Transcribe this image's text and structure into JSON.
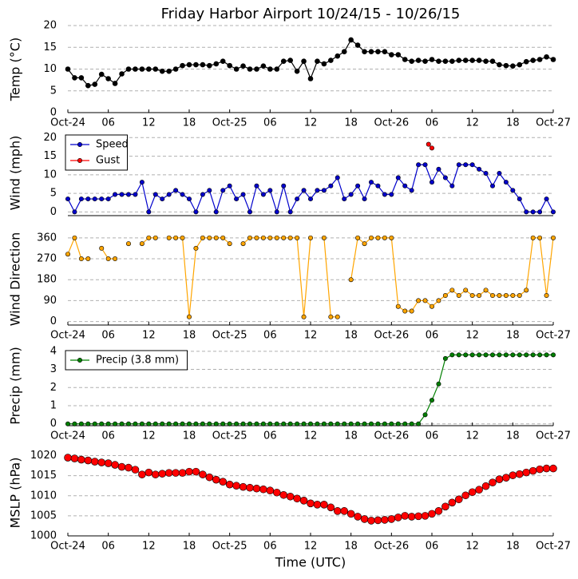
{
  "chart_data": [
    {
      "type": "line",
      "title": "Friday Harbor Airport 10/24/15 - 10/26/15",
      "ylabel": "Temp (°C)",
      "xlim": [
        0,
        72
      ],
      "ylim": [
        0,
        20
      ],
      "yticks": [
        0,
        5,
        10,
        15,
        20
      ],
      "grid": true,
      "xticks": [
        {
          "value": 0,
          "label": "Oct-24"
        },
        {
          "value": 6,
          "label": "06"
        },
        {
          "value": 12,
          "label": "12"
        },
        {
          "value": 18,
          "label": "18"
        },
        {
          "value": 24,
          "label": "Oct-25"
        },
        {
          "value": 30,
          "label": "06"
        },
        {
          "value": 36,
          "label": "12"
        },
        {
          "value": 42,
          "label": "18"
        },
        {
          "value": 48,
          "label": "Oct-26"
        },
        {
          "value": 54,
          "label": "06"
        },
        {
          "value": 60,
          "label": "12"
        },
        {
          "value": 66,
          "label": "18"
        },
        {
          "value": 72,
          "label": "Oct-27"
        }
      ],
      "x": [
        0,
        1,
        2,
        3,
        4,
        5,
        6,
        7,
        8,
        9,
        10,
        11,
        12,
        13,
        14,
        15,
        16,
        17,
        18,
        19,
        20,
        21,
        22,
        23,
        24,
        25,
        26,
        27,
        28,
        29,
        30,
        31,
        32,
        33,
        34,
        35,
        36,
        37,
        38,
        39,
        40,
        41,
        42,
        43,
        44,
        45,
        46,
        47,
        48,
        49,
        50,
        51,
        52,
        53,
        54,
        55,
        56,
        57,
        58,
        59,
        60,
        61,
        62,
        63,
        64,
        65,
        66,
        67,
        68,
        69,
        70,
        71,
        72
      ],
      "series": [
        {
          "name": "Temp",
          "color": "#000000",
          "values": [
            10,
            8,
            8,
            6.2,
            6.5,
            8.8,
            7.8,
            6.7,
            8.9,
            10,
            10,
            10,
            10,
            10,
            9.5,
            9.5,
            10,
            10.8,
            11,
            11,
            11,
            10.8,
            11.2,
            11.8,
            10.8,
            10,
            10.7,
            10,
            10,
            10.7,
            10,
            10,
            11.8,
            12,
            9.5,
            11.8,
            7.8,
            11.8,
            11.2,
            12,
            13,
            14,
            16.7,
            15.5,
            14,
            14,
            14,
            14,
            13.3,
            13.3,
            12.2,
            11.8,
            12,
            11.8,
            12.2,
            11.8,
            11.8,
            11.8,
            12,
            12,
            12,
            12,
            11.8,
            11.8,
            11,
            10.8,
            10.7,
            11,
            11.7,
            12,
            12.2,
            12.8,
            12.2
          ]
        }
      ]
    },
    {
      "type": "line",
      "ylabel": "Wind (mph)",
      "legend": "upper left",
      "xlim": [
        0,
        72
      ],
      "ylim": [
        -1,
        22
      ],
      "yticks": [
        0,
        5,
        10,
        15,
        20
      ],
      "grid": true,
      "x": [
        0,
        1,
        2,
        3,
        4,
        5,
        6,
        7,
        8,
        9,
        10,
        11,
        12,
        13,
        14,
        15,
        16,
        17,
        18,
        19,
        20,
        21,
        22,
        23,
        24,
        25,
        26,
        27,
        28,
        29,
        30,
        31,
        32,
        33,
        34,
        35,
        36,
        37,
        38,
        39,
        40,
        41,
        42,
        43,
        44,
        45,
        46,
        47,
        48,
        49,
        50,
        51,
        52,
        53,
        54,
        55,
        56,
        57,
        58,
        59,
        60,
        61,
        62,
        63,
        64,
        65,
        66,
        67,
        68,
        69,
        70,
        71,
        72
      ],
      "series": [
        {
          "name": "Speed",
          "color": "#0000cc",
          "values": [
            3.5,
            0,
            3.5,
            3.5,
            3.5,
            3.5,
            3.5,
            4.7,
            4.7,
            4.7,
            4.7,
            8,
            0,
            4.7,
            3.5,
            4.7,
            5.8,
            4.7,
            3.5,
            0,
            4.7,
            5.8,
            0,
            5.8,
            7,
            3.5,
            4.7,
            0,
            7,
            4.7,
            5.8,
            0,
            7,
            0,
            3.5,
            5.8,
            3.5,
            5.8,
            5.8,
            7,
            9.2,
            3.5,
            4.7,
            7,
            3.5,
            8,
            7,
            4.7,
            4.7,
            9.2,
            7,
            5.8,
            12.7,
            12.7,
            8,
            11.5,
            9.2,
            7,
            12.7,
            12.7,
            12.7,
            11.5,
            10.4,
            7,
            10.4,
            8,
            5.8,
            3.5,
            0,
            0,
            0,
            3.5,
            0
          ]
        },
        {
          "name": "Gust",
          "color": "#ff0000",
          "x": [
            53.5,
            54
          ],
          "values": [
            18.2,
            17.2
          ]
        }
      ]
    },
    {
      "type": "line",
      "ylabel": "Wind Direction",
      "xlim": [
        0,
        72
      ],
      "ylim": [
        -15,
        380
      ],
      "yticks": [
        0,
        90,
        180,
        270,
        360
      ],
      "grid": true,
      "xticks": [
        {
          "value": 0,
          "label": "Oct-24"
        },
        {
          "value": 6,
          "label": "06"
        },
        {
          "value": 12,
          "label": "12"
        },
        {
          "value": 18,
          "label": "18"
        },
        {
          "value": 24,
          "label": "Oct-25"
        },
        {
          "value": 30,
          "label": "06"
        },
        {
          "value": 36,
          "label": "12"
        },
        {
          "value": 42,
          "label": "18"
        },
        {
          "value": 48,
          "label": "Oct-26"
        },
        {
          "value": 54,
          "label": "06"
        },
        {
          "value": 60,
          "label": "12"
        },
        {
          "value": 66,
          "label": "18"
        },
        {
          "value": 72,
          "label": "Oct-27"
        }
      ],
      "x": [
        0,
        1,
        2,
        3,
        4,
        5,
        6,
        7,
        8,
        9,
        10,
        11,
        12,
        13,
        14,
        15,
        16,
        17,
        18,
        19,
        20,
        21,
        22,
        23,
        24,
        25,
        26,
        27,
        28,
        29,
        30,
        31,
        32,
        33,
        34,
        35,
        36,
        37,
        38,
        39,
        40,
        41,
        42,
        43,
        44,
        45,
        46,
        47,
        48,
        49,
        50,
        51,
        52,
        53,
        54,
        55,
        56,
        57,
        58,
        59,
        60,
        61,
        62,
        63,
        64,
        65,
        66,
        67,
        68,
        69,
        70,
        71,
        72
      ],
      "series": [
        {
          "name": "Direction",
          "color": "#ffa500",
          "values": [
            290,
            360,
            270,
            270,
            null,
            315,
            270,
            270,
            null,
            335,
            null,
            335,
            360,
            360,
            null,
            360,
            360,
            360,
            20,
            315,
            360,
            360,
            360,
            360,
            335,
            null,
            335,
            360,
            360,
            360,
            360,
            360,
            360,
            360,
            360,
            20,
            360,
            null,
            360,
            20,
            20,
            null,
            180,
            360,
            335,
            360,
            360,
            360,
            360,
            65,
            45,
            45,
            90,
            90,
            65,
            90,
            112,
            135,
            112,
            135,
            112,
            112,
            135,
            112,
            112,
            112,
            112,
            112,
            135,
            360,
            360,
            112,
            360
          ]
        }
      ]
    },
    {
      "type": "line",
      "ylabel": "Precip (mm)",
      "legend": "upper left",
      "xlim": [
        0,
        72
      ],
      "ylim": [
        -0.1,
        4.3
      ],
      "yticks": [
        0,
        1,
        2,
        3,
        4
      ],
      "grid": true,
      "xticks": [
        {
          "value": 0,
          "label": "Oct-24"
        },
        {
          "value": 6,
          "label": "06"
        },
        {
          "value": 12,
          "label": "12"
        },
        {
          "value": 18,
          "label": "18"
        },
        {
          "value": 24,
          "label": "Oct-25"
        },
        {
          "value": 30,
          "label": "06"
        },
        {
          "value": 36,
          "label": "12"
        },
        {
          "value": 42,
          "label": "18"
        },
        {
          "value": 48,
          "label": "Oct-26"
        },
        {
          "value": 54,
          "label": "06"
        },
        {
          "value": 60,
          "label": "12"
        },
        {
          "value": 66,
          "label": "18"
        },
        {
          "value": 72,
          "label": "Oct-27"
        }
      ],
      "x": [
        0,
        1,
        2,
        3,
        4,
        5,
        6,
        7,
        8,
        9,
        10,
        11,
        12,
        13,
        14,
        15,
        16,
        17,
        18,
        19,
        20,
        21,
        22,
        23,
        24,
        25,
        26,
        27,
        28,
        29,
        30,
        31,
        32,
        33,
        34,
        35,
        36,
        37,
        38,
        39,
        40,
        41,
        42,
        43,
        44,
        45,
        46,
        47,
        48,
        49,
        50,
        51,
        52,
        53,
        54,
        55,
        56,
        57,
        58,
        59,
        60,
        61,
        62,
        63,
        64,
        65,
        66,
        67,
        68,
        69,
        70,
        71,
        72
      ],
      "series": [
        {
          "name": "Precip (3.8 mm)",
          "color": "#007f00",
          "values": [
            0,
            0,
            0,
            0,
            0,
            0,
            0,
            0,
            0,
            0,
            0,
            0,
            0,
            0,
            0,
            0,
            0,
            0,
            0,
            0,
            0,
            0,
            0,
            0,
            0,
            0,
            0,
            0,
            0,
            0,
            0,
            0,
            0,
            0,
            0,
            0,
            0,
            0,
            0,
            0,
            0,
            0,
            0,
            0,
            0,
            0,
            0,
            0,
            0,
            0,
            0,
            0,
            0,
            0.5,
            1.3,
            2.2,
            3.6,
            3.8,
            3.8,
            3.8,
            3.8,
            3.8,
            3.8,
            3.8,
            3.8,
            3.8,
            3.8,
            3.8,
            3.8,
            3.8,
            3.8,
            3.8,
            3.8
          ]
        }
      ]
    },
    {
      "type": "line",
      "ylabel": "MSLP (hPa)",
      "xlabel": "Time (UTC)",
      "xlim": [
        0,
        72
      ],
      "ylim": [
        1000,
        1021.5
      ],
      "yticks": [
        1000,
        1005,
        1010,
        1015,
        1020
      ],
      "grid": true,
      "xticks": [
        {
          "value": 0,
          "label": "Oct-24"
        },
        {
          "value": 6,
          "label": "06"
        },
        {
          "value": 12,
          "label": "12"
        },
        {
          "value": 18,
          "label": "18"
        },
        {
          "value": 24,
          "label": "Oct-25"
        },
        {
          "value": 30,
          "label": "06"
        },
        {
          "value": 36,
          "label": "12"
        },
        {
          "value": 42,
          "label": "18"
        },
        {
          "value": 48,
          "label": "Oct-26"
        },
        {
          "value": 54,
          "label": "06"
        },
        {
          "value": 60,
          "label": "12"
        },
        {
          "value": 66,
          "label": "18"
        },
        {
          "value": 72,
          "label": "Oct-27"
        }
      ],
      "x": [
        0,
        1,
        2,
        3,
        4,
        5,
        6,
        7,
        8,
        9,
        10,
        11,
        12,
        13,
        14,
        15,
        16,
        17,
        18,
        19,
        20,
        21,
        22,
        23,
        24,
        25,
        26,
        27,
        28,
        29,
        30,
        31,
        32,
        33,
        34,
        35,
        36,
        37,
        38,
        39,
        40,
        41,
        42,
        43,
        44,
        45,
        46,
        47,
        48,
        49,
        50,
        51,
        52,
        53,
        54,
        55,
        56,
        57,
        58,
        59,
        60,
        61,
        62,
        63,
        64,
        65,
        66,
        67,
        68,
        69,
        70,
        71,
        72
      ],
      "series": [
        {
          "name": "MSLP",
          "color": "#ff0000",
          "values": [
            1019.5,
            1019.3,
            1019,
            1018.8,
            1018.5,
            1018.3,
            1018.1,
            1017.7,
            1017.2,
            1017,
            1016.5,
            1015.3,
            1015.8,
            1015.3,
            1015.5,
            1015.7,
            1015.7,
            1015.7,
            1016,
            1016,
            1015.3,
            1014.6,
            1014,
            1013.5,
            1012.8,
            1012.5,
            1012.2,
            1012,
            1011.8,
            1011.6,
            1011.3,
            1010.8,
            1010.2,
            1009.8,
            1009.3,
            1008.8,
            1008.1,
            1007.8,
            1007.8,
            1007.1,
            1006.2,
            1006.2,
            1005.5,
            1004.8,
            1004.2,
            1003.8,
            1003.9,
            1004,
            1004.2,
            1004.6,
            1005,
            1004.8,
            1004.9,
            1005,
            1005.5,
            1006.2,
            1007.3,
            1008.3,
            1009.1,
            1010.1,
            1010.9,
            1011.5,
            1012.4,
            1013.3,
            1014.1,
            1014.5,
            1015.1,
            1015.4,
            1015.8,
            1016.2,
            1016.6,
            1016.8,
            1016.8
          ]
        }
      ]
    }
  ]
}
